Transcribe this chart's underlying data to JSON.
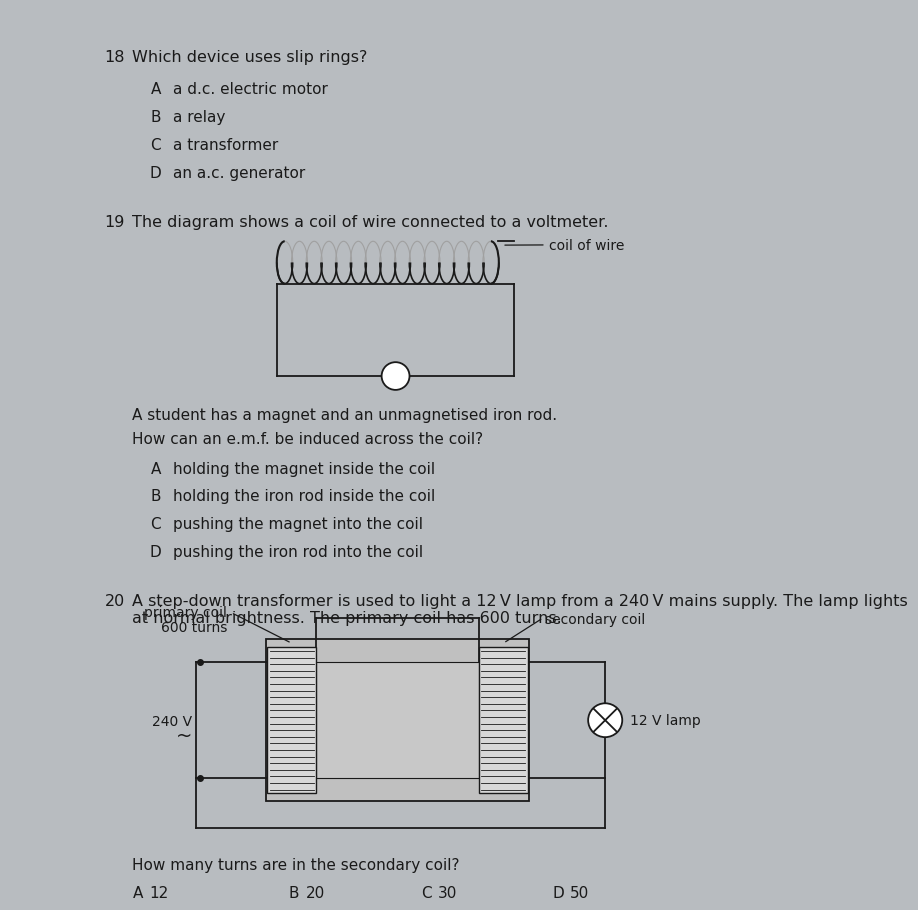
{
  "bg_color": "#b8bcc0",
  "text_color": "#1a1a1a",
  "q18_num": "18",
  "q18_text": "Which device uses slip rings?",
  "q18_options": [
    [
      "A",
      "a d.c. electric motor"
    ],
    [
      "B",
      "a relay"
    ],
    [
      "C",
      "a transformer"
    ],
    [
      "D",
      "an a.c. generator"
    ]
  ],
  "q19_num": "19",
  "q19_text": "The diagram shows a coil of wire connected to a voltmeter.",
  "q19_sub": "A student has a magnet and an unmagnetised iron rod.",
  "q19_sub2": "How can an e.m.f. be induced across the coil?",
  "q19_options": [
    [
      "A",
      "holding the magnet inside the coil"
    ],
    [
      "B",
      "holding the iron rod inside the coil"
    ],
    [
      "C",
      "pushing the magnet into the coil"
    ],
    [
      "D",
      "pushing the iron rod into the coil"
    ]
  ],
  "q20_num": "20",
  "q20_text_line1": "A step-down transformer is used to light a 12 V lamp from a 240 V mains supply. The lamp lights",
  "q20_text_line2": "at normal brightness. The primary coil has 600 turns.",
  "q20_sub": "How many turns are in the secondary coil?",
  "q20_options": [
    [
      "A",
      "12"
    ],
    [
      "B",
      "20"
    ],
    [
      "C",
      "30"
    ],
    [
      "D",
      "50"
    ]
  ],
  "coil_label": "coil of wire",
  "primary_label1": "primary coil",
  "primary_label2": "600 turns",
  "secondary_label": "secondary coil",
  "voltage_label": "240 V",
  "tilde": "~",
  "lamp_label": "12 V lamp",
  "font_size_q": 11.5,
  "font_size_opt": 11.0,
  "font_size_small": 10.0
}
